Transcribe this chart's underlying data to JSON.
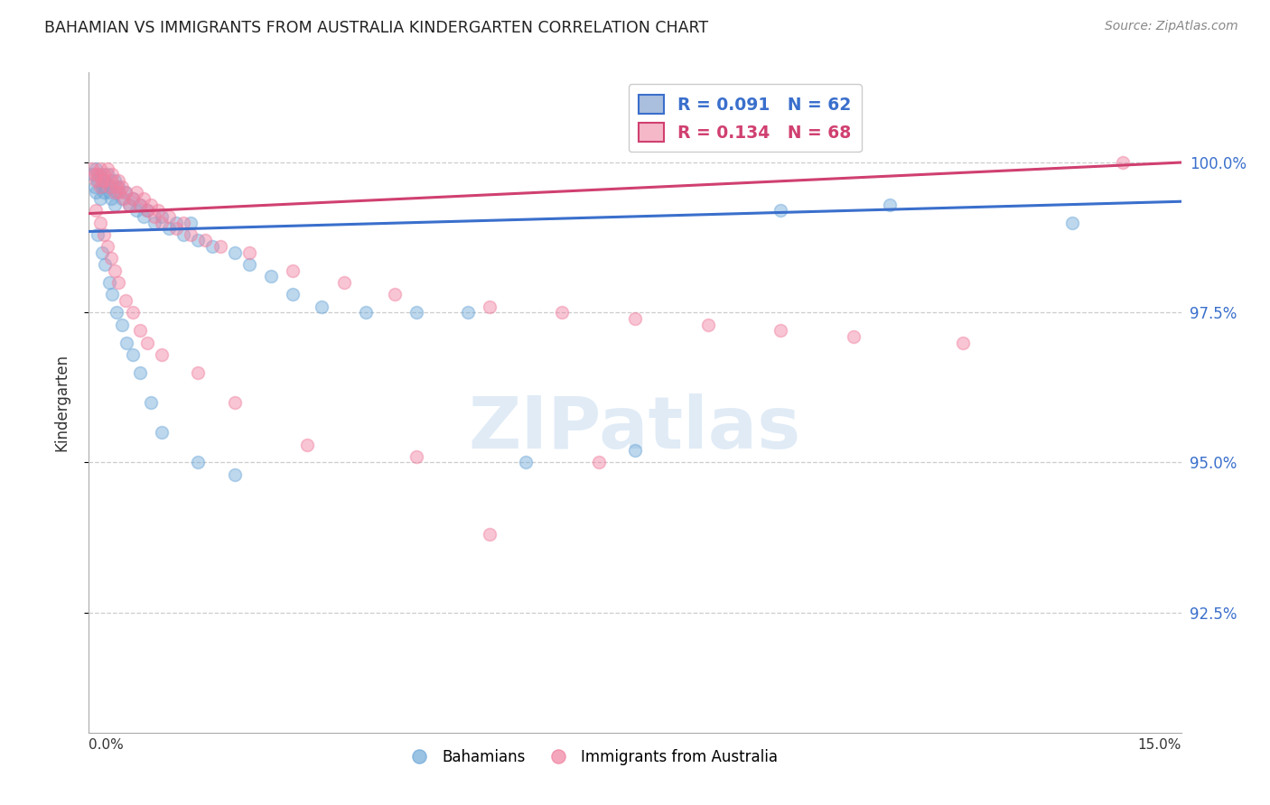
{
  "title": "BAHAMIAN VS IMMIGRANTS FROM AUSTRALIA KINDERGARTEN CORRELATION CHART",
  "source": "Source: ZipAtlas.com",
  "ylabel": "Kindergarten",
  "yticks": [
    92.5,
    95.0,
    97.5,
    100.0
  ],
  "ytick_labels": [
    "92.5%",
    "95.0%",
    "97.5%",
    "100.0%"
  ],
  "xmin": 0.0,
  "xmax": 15.0,
  "ymin": 90.5,
  "ymax": 101.5,
  "blue_color": "#6ea8d8",
  "pink_color": "#f080a0",
  "blue_line_color": "#3a6fcc",
  "pink_line_color": "#d04070",
  "watermark_text": "ZIPatlas",
  "blue_x": [
    0.05,
    0.08,
    0.1,
    0.1,
    0.12,
    0.15,
    0.15,
    0.18,
    0.2,
    0.2,
    0.22,
    0.25,
    0.28,
    0.3,
    0.3,
    0.35,
    0.35,
    0.38,
    0.4,
    0.45,
    0.5,
    0.55,
    0.6,
    0.65,
    0.7,
    0.75,
    0.8,
    0.9,
    1.0,
    1.1,
    1.2,
    1.3,
    1.4,
    1.5,
    1.7,
    2.0,
    2.2,
    2.5,
    2.8,
    3.2,
    3.8,
    4.5,
    5.2,
    6.0,
    7.5,
    9.5,
    11.0,
    13.5,
    0.12,
    0.18,
    0.22,
    0.28,
    0.32,
    0.38,
    0.45,
    0.52,
    0.6,
    0.7,
    0.85,
    1.0,
    1.5,
    2.0
  ],
  "blue_y": [
    99.8,
    99.6,
    99.9,
    99.5,
    99.7,
    99.8,
    99.4,
    99.6,
    99.7,
    99.5,
    99.6,
    99.8,
    99.5,
    99.6,
    99.4,
    99.7,
    99.3,
    99.5,
    99.6,
    99.4,
    99.5,
    99.3,
    99.4,
    99.2,
    99.3,
    99.1,
    99.2,
    99.0,
    99.1,
    98.9,
    99.0,
    98.8,
    99.0,
    98.7,
    98.6,
    98.5,
    98.3,
    98.1,
    97.8,
    97.6,
    97.5,
    97.5,
    97.5,
    95.0,
    95.2,
    99.2,
    99.3,
    99.0,
    98.8,
    98.5,
    98.3,
    98.0,
    97.8,
    97.5,
    97.3,
    97.0,
    96.8,
    96.5,
    96.0,
    95.5,
    95.0,
    94.8
  ],
  "pink_x": [
    0.05,
    0.08,
    0.1,
    0.12,
    0.15,
    0.15,
    0.18,
    0.2,
    0.22,
    0.25,
    0.28,
    0.3,
    0.32,
    0.35,
    0.38,
    0.4,
    0.42,
    0.45,
    0.48,
    0.5,
    0.55,
    0.6,
    0.65,
    0.7,
    0.75,
    0.8,
    0.85,
    0.9,
    0.95,
    1.0,
    1.1,
    1.2,
    1.3,
    1.4,
    1.6,
    1.8,
    2.2,
    2.8,
    3.5,
    4.2,
    5.5,
    6.5,
    7.5,
    8.5,
    9.5,
    10.5,
    12.0,
    14.2,
    0.1,
    0.15,
    0.2,
    0.25,
    0.3,
    0.35,
    0.4,
    0.5,
    0.6,
    0.7,
    0.8,
    1.0,
    1.5,
    2.0,
    3.0,
    4.5,
    5.5,
    7.0
  ],
  "pink_y": [
    99.9,
    99.8,
    99.7,
    99.8,
    99.9,
    99.6,
    99.7,
    99.8,
    99.7,
    99.9,
    99.6,
    99.7,
    99.8,
    99.5,
    99.6,
    99.7,
    99.5,
    99.6,
    99.4,
    99.5,
    99.3,
    99.4,
    99.5,
    99.3,
    99.4,
    99.2,
    99.3,
    99.1,
    99.2,
    99.0,
    99.1,
    98.9,
    99.0,
    98.8,
    98.7,
    98.6,
    98.5,
    98.2,
    98.0,
    97.8,
    97.6,
    97.5,
    97.4,
    97.3,
    97.2,
    97.1,
    97.0,
    100.0,
    99.2,
    99.0,
    98.8,
    98.6,
    98.4,
    98.2,
    98.0,
    97.7,
    97.5,
    97.2,
    97.0,
    96.8,
    96.5,
    96.0,
    95.3,
    95.1,
    93.8,
    95.0
  ],
  "blue_trend_x": [
    0.0,
    15.0
  ],
  "blue_trend_y": [
    98.85,
    99.35
  ],
  "pink_trend_x": [
    0.0,
    15.0
  ],
  "pink_trend_y": [
    99.15,
    100.0
  ]
}
